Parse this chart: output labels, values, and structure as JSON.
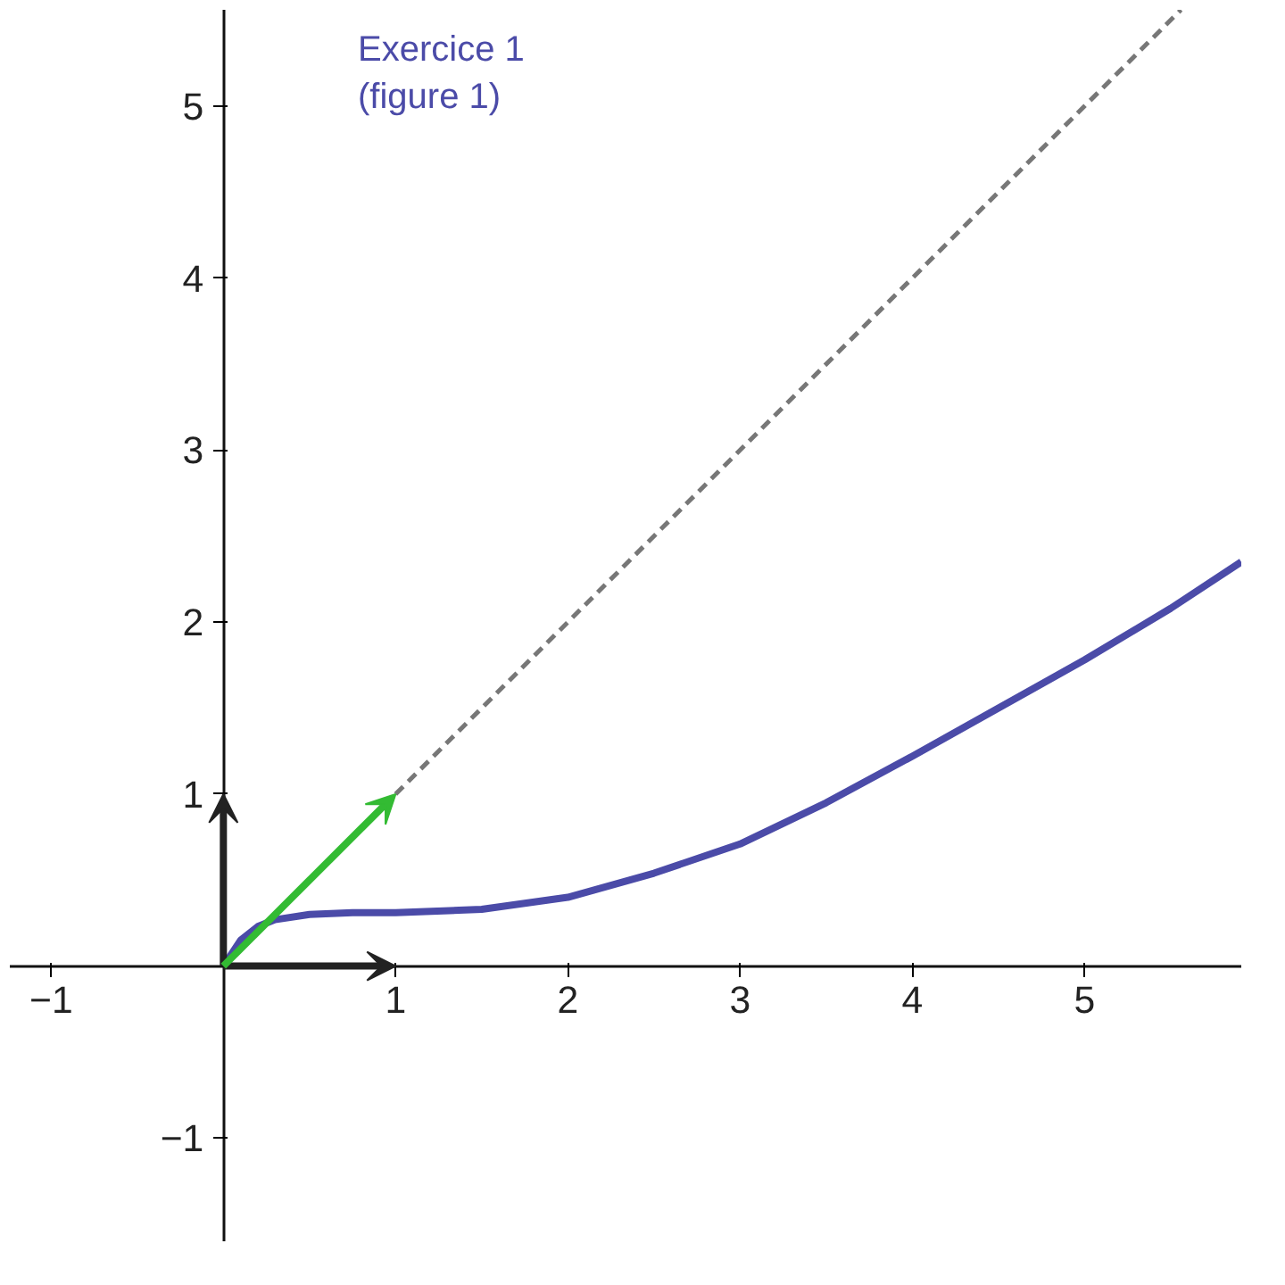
{
  "chart_data": {
    "type": "line",
    "annotations": [
      "Exercice 1\n(figure 1)"
    ],
    "xlim": [
      -1.24,
      5.91
    ],
    "ylim": [
      -1.6,
      5.56
    ],
    "xticks": [
      {
        "value": -1,
        "label": "−1"
      },
      1,
      2,
      3,
      4,
      5
    ],
    "yticks": [
      {
        "value": -1,
        "label": "−1"
      },
      1,
      2,
      3,
      4,
      5
    ],
    "grid": false,
    "series": [
      {
        "color": "#4b4ba8",
        "x": [
          0,
          0.1,
          0.2,
          0.3,
          0.5,
          0.75,
          1,
          1.5,
          2,
          2.5,
          3,
          3.5,
          4,
          4.5,
          5,
          5.5,
          5.91
        ],
        "values": [
          0,
          0.15,
          0.23,
          0.27,
          0.3,
          0.31,
          0.31,
          0.33,
          0.4,
          0.54,
          0.71,
          0.95,
          1.22,
          1.5,
          1.78,
          2.08,
          2.35
        ]
      },
      {
        "color": "#777777",
        "line_style": "dashed",
        "x": [
          1,
          5.56
        ],
        "values": [
          1,
          5.56
        ]
      }
    ]
  }
}
